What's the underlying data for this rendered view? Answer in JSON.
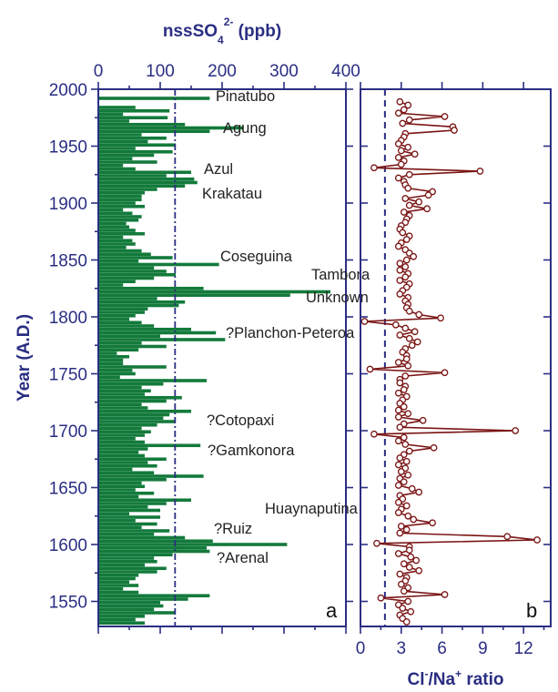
{
  "chart_data": [
    {
      "type": "bar",
      "orientation": "horizontal",
      "panel_label": "a",
      "title_parts": {
        "main": "nssSO",
        "sub": "4",
        "sup": "2-",
        "tail": " (ppb)"
      },
      "ylabel": "Year (A.D.)",
      "xlim": [
        0,
        400
      ],
      "ylim": [
        1528,
        2000
      ],
      "x_ticks": [
        "0",
        "100",
        "200",
        "300",
        "400"
      ],
      "y_ticks": [
        "1550",
        "1600",
        "1650",
        "1700",
        "1750",
        "1800",
        "1850",
        "1900",
        "1950",
        "2000"
      ],
      "bar_color": "#137a3b",
      "threshold": 124,
      "threshold_color": "#2a2e82",
      "series": [
        {
          "year": [
            1992,
            1984,
            1981,
            1978,
            1975,
            1972,
            1969,
            1966,
            1963,
            1960,
            1957,
            1954,
            1951,
            1948,
            1945,
            1942,
            1939,
            1936,
            1933,
            1930,
            1927,
            1924,
            1921,
            1918,
            1915,
            1912,
            1909,
            1906,
            1903,
            1900,
            1897,
            1894,
            1891,
            1888,
            1885,
            1882,
            1879,
            1876,
            1873,
            1870,
            1867,
            1864,
            1861,
            1858,
            1855,
            1852,
            1849,
            1846,
            1843,
            1840,
            1837,
            1834,
            1831,
            1828,
            1825,
            1822,
            1819,
            1816,
            1813,
            1810,
            1807,
            1804,
            1801,
            1798,
            1795,
            1792,
            1789,
            1786,
            1783,
            1780,
            1777,
            1774,
            1771,
            1768,
            1765,
            1762,
            1759,
            1756,
            1753,
            1750,
            1747,
            1744,
            1741,
            1738,
            1735,
            1732,
            1729,
            1726,
            1723,
            1720,
            1717,
            1714,
            1711,
            1708,
            1705,
            1702,
            1699,
            1696,
            1693,
            1690,
            1687,
            1684,
            1681,
            1678,
            1675,
            1672,
            1669,
            1666,
            1663,
            1660,
            1657,
            1654,
            1651,
            1648,
            1645,
            1642,
            1639,
            1636,
            1633,
            1630,
            1627,
            1624,
            1621,
            1618,
            1615,
            1612,
            1609,
            1606,
            1603,
            1600,
            1597,
            1594,
            1591,
            1588,
            1585,
            1582,
            1579,
            1576,
            1573,
            1570,
            1567,
            1564,
            1561,
            1558,
            1555,
            1552,
            1549,
            1546,
            1543,
            1540,
            1537,
            1534,
            1531
          ],
          "nssSO4": [
            180,
            60,
            115,
            40,
            112,
            50,
            140,
            235,
            180,
            70,
            110,
            80,
            125,
            60,
            120,
            90,
            55,
            95,
            40,
            60,
            150,
            110,
            155,
            160,
            140,
            95,
            75,
            70,
            70,
            60,
            75,
            40,
            55,
            70,
            65,
            45,
            50,
            60,
            75,
            40,
            55,
            60,
            45,
            70,
            85,
            120,
            65,
            195,
            90,
            110,
            125,
            90,
            60,
            40,
            170,
            375,
            310,
            95,
            140,
            130,
            80,
            75,
            60,
            50,
            70,
            90,
            150,
            190,
            100,
            205,
            70,
            110,
            65,
            30,
            50,
            40,
            40,
            110,
            55,
            60,
            35,
            175,
            105,
            70,
            85,
            75,
            135,
            110,
            70,
            80,
            150,
            115,
            105,
            125,
            95,
            70,
            85,
            75,
            60,
            75,
            165,
            80,
            65,
            75,
            110,
            80,
            95,
            55,
            90,
            170,
            110,
            70,
            75,
            60,
            90,
            65,
            150,
            110,
            80,
            100,
            50,
            100,
            60,
            95,
            70,
            115,
            90,
            140,
            185,
            305,
            175,
            180,
            120,
            90,
            95,
            75,
            110,
            95,
            65,
            60,
            50,
            65,
            40,
            65,
            180,
            145,
            100,
            105,
            90,
            125,
            75,
            60,
            75
          ]
        }
      ],
      "annotations": [
        "Pinatubo",
        "Agung",
        "Azul",
        "Krakatau",
        "Coseguina",
        "Tambora",
        "Unknown",
        "?Planchon-Peteroa",
        "?Cotopaxi",
        "?Gamkonora",
        "Huaynaputina",
        "?Ruiz",
        "?Arenal"
      ]
    },
    {
      "type": "line",
      "panel_label": "b",
      "xlabel_parts": {
        "a": "Cl",
        "a_sup": "-",
        "mid": "/Na",
        "b_sup": "+",
        "tail": " ratio"
      },
      "xlim": [
        0,
        14
      ],
      "ylim": [
        1528,
        2000
      ],
      "x_ticks": [
        "0",
        "3",
        "6",
        "9",
        "12"
      ],
      "line_color": "#7a1414",
      "marker": "open circle",
      "reference_line": 1.8,
      "reference_color": "#2a2e82",
      "series": [
        {
          "year": [
            1989,
            1986,
            1982,
            1979,
            1976,
            1973,
            1970,
            1967,
            1964,
            1961,
            1958,
            1955,
            1952,
            1949,
            1946,
            1943,
            1940,
            1937,
            1934,
            1931,
            1928,
            1925,
            1922,
            1919,
            1916,
            1913,
            1910,
            1907,
            1904,
            1901,
            1898,
            1895,
            1892,
            1889,
            1886,
            1883,
            1880,
            1877,
            1874,
            1871,
            1868,
            1865,
            1862,
            1859,
            1856,
            1853,
            1850,
            1847,
            1844,
            1841,
            1838,
            1835,
            1832,
            1829,
            1826,
            1823,
            1820,
            1817,
            1814,
            1811,
            1808,
            1805,
            1802,
            1799,
            1796,
            1793,
            1790,
            1787,
            1784,
            1781,
            1778,
            1775,
            1772,
            1769,
            1766,
            1763,
            1760,
            1757,
            1754,
            1751,
            1748,
            1745,
            1742,
            1739,
            1736,
            1733,
            1730,
            1727,
            1724,
            1721,
            1718,
            1715,
            1712,
            1709,
            1706,
            1703,
            1700,
            1697,
            1694,
            1691,
            1688,
            1685,
            1682,
            1679,
            1676,
            1673,
            1670,
            1667,
            1664,
            1661,
            1658,
            1655,
            1652,
            1649,
            1646,
            1643,
            1640,
            1637,
            1634,
            1631,
            1628,
            1625,
            1622,
            1619,
            1616,
            1613,
            1610,
            1607,
            1604,
            1601,
            1598,
            1595,
            1592,
            1589,
            1586,
            1583,
            1580,
            1577,
            1574,
            1571,
            1568,
            1565,
            1562,
            1559,
            1556,
            1553,
            1550,
            1547,
            1544,
            1541,
            1538,
            1535,
            1532
          ],
          "ratio": [
            2.9,
            3.5,
            3.2,
            2.8,
            6.2,
            3.6,
            3.1,
            6.8,
            6.9,
            3.3,
            3.2,
            3.0,
            2.8,
            3.5,
            3.0,
            4.0,
            2.8,
            3.2,
            3.0,
            1.0,
            8.8,
            3.6,
            2.8,
            3.2,
            3.3,
            3.5,
            5.3,
            5.0,
            3.3,
            4.3,
            3.6,
            4.9,
            3.2,
            3.6,
            3.4,
            3.3,
            3.0,
            2.9,
            3.1,
            3.6,
            3.4,
            3.0,
            2.8,
            3.3,
            3.6,
            3.9,
            3.4,
            2.9,
            3.3,
            2.9,
            3.5,
            3.3,
            2.9,
            3.6,
            3.4,
            3.1,
            2.9,
            3.5,
            3.3,
            3.5,
            3.4,
            3.6,
            4.3,
            5.9,
            0.3,
            2.6,
            3.3,
            4.0,
            2.9,
            3.6,
            4.2,
            3.8,
            3.3,
            3.1,
            3.4,
            3.4,
            2.8,
            3.5,
            0.7,
            6.2,
            3.3,
            2.9,
            2.9,
            3.3,
            3.2,
            2.8,
            3.4,
            3.1,
            2.9,
            3.2,
            2.8,
            3.5,
            2.8,
            4.6,
            3.2,
            2.9,
            11.4,
            1.0,
            3.2,
            2.8,
            3.3,
            5.4,
            3.6,
            3.2,
            2.9,
            3.4,
            2.8,
            3.3,
            3.0,
            3.5,
            2.9,
            3.2,
            2.8,
            3.8,
            4.3,
            2.9,
            3.1,
            2.8,
            3.4,
            3.0,
            2.8,
            3.5,
            3.9,
            5.3,
            3.0,
            3.4,
            2.9,
            10.8,
            13.0,
            1.2,
            3.6,
            3.6,
            2.8,
            3.7,
            4.1,
            3.2,
            3.6,
            4.3,
            2.9,
            3.4,
            3.3,
            3.0,
            3.5,
            3.2,
            6.2,
            1.5,
            3.5,
            2.8,
            3.1,
            3.7,
            2.9,
            3.1,
            3.4,
            3.0,
            2.8
          ]
        }
      ]
    }
  ]
}
